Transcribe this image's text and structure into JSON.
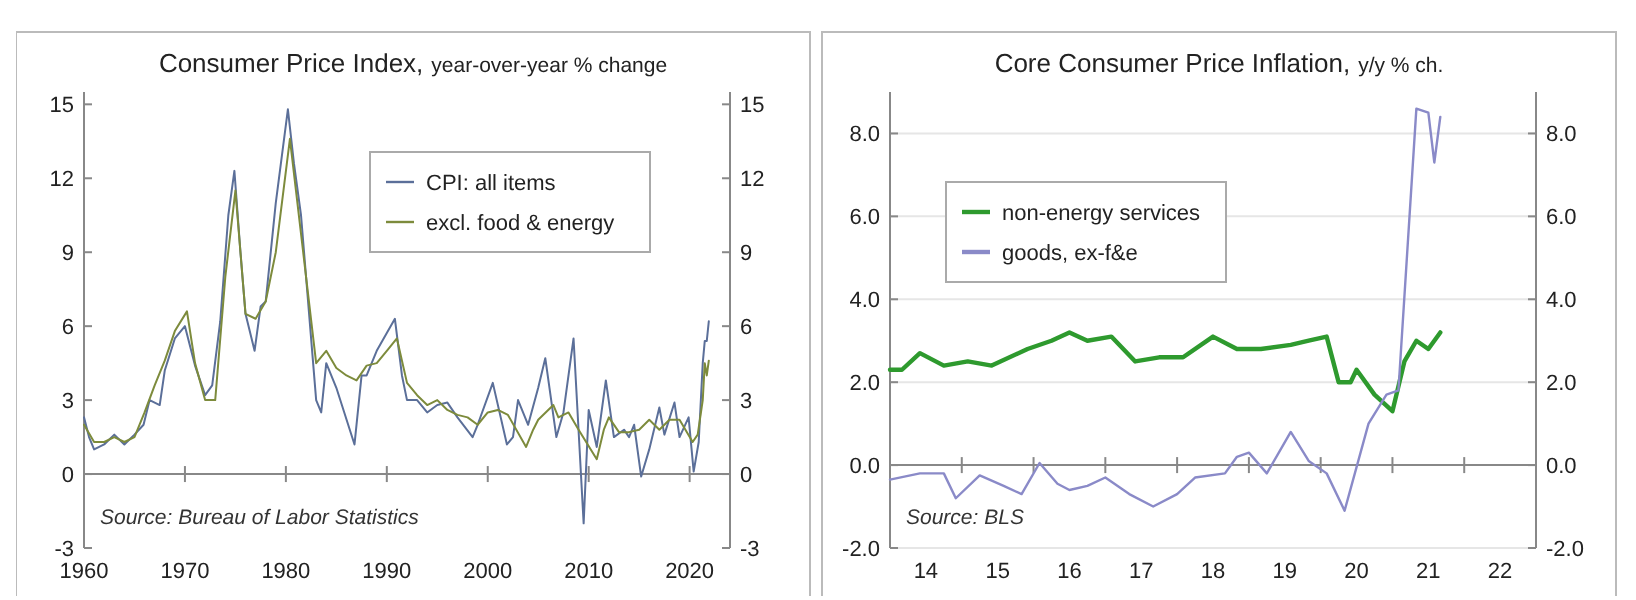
{
  "chart_data": [
    {
      "type": "line",
      "title": "Consumer Price Index,",
      "subtitle": "year-over-year % change",
      "xlim": [
        1960,
        2024
      ],
      "xticks": [
        1960,
        1970,
        1980,
        1990,
        2000,
        2010,
        2020
      ],
      "ylim": [
        -3,
        15.5
      ],
      "yticks": [
        -3,
        0,
        3,
        6,
        9,
        12,
        15
      ],
      "y2lim": [
        -3,
        15.5
      ],
      "y2ticks": [
        -3,
        0,
        3,
        6,
        9,
        12,
        15
      ],
      "legend": "top right",
      "annotations": [
        "Source: Bureau of Labor Statistics"
      ],
      "series": [
        {
          "name": "CPI: all items",
          "color": "#5b6f99",
          "x": [
            1960,
            1960.5,
            1961,
            1962,
            1963,
            1964,
            1965,
            1965.9,
            1966.5,
            1967.5,
            1968,
            1969,
            1970,
            1971,
            1972,
            1972.7,
            1973.5,
            1974.3,
            1974.9,
            1975.5,
            1976,
            1976.9,
            1977.5,
            1978,
            1979,
            1980.2,
            1980.8,
            1981.5,
            1982,
            1983,
            1983.5,
            1984,
            1985,
            1986.8,
            1987.5,
            1988,
            1989,
            1990.8,
            1991.5,
            1992,
            1993,
            1994,
            1995,
            1996,
            1997,
            1998.5,
            1999,
            2000.5,
            2001.9,
            2002.5,
            2003,
            2004,
            2005,
            2005.7,
            2006.8,
            2007.5,
            2008.5,
            2009.5,
            2010,
            2010.8,
            2011.7,
            2012.5,
            2013.5,
            2014,
            2014.5,
            2015.2,
            2016,
            2017,
            2017.5,
            2018.5,
            2019,
            2019.9,
            2020.4,
            2020.9,
            2021.3,
            2021.5,
            2021.7,
            2021.9
          ],
          "values": [
            2.3,
            1.5,
            1.0,
            1.2,
            1.6,
            1.2,
            1.6,
            2.0,
            3.0,
            2.8,
            4.2,
            5.5,
            6.0,
            4.4,
            3.2,
            3.6,
            6.2,
            10.5,
            12.3,
            9.0,
            6.5,
            5.0,
            6.8,
            7.0,
            11.0,
            14.8,
            12.6,
            10.5,
            8.0,
            3.0,
            2.5,
            4.5,
            3.5,
            1.2,
            4.0,
            4.0,
            5.0,
            6.3,
            4.0,
            3.0,
            3.0,
            2.5,
            2.8,
            2.9,
            2.3,
            1.5,
            2.0,
            3.7,
            1.2,
            1.5,
            3.0,
            2.0,
            3.5,
            4.7,
            1.5,
            2.5,
            5.5,
            -2.0,
            2.6,
            1.1,
            3.8,
            1.5,
            1.8,
            1.5,
            2.0,
            -0.1,
            1.0,
            2.7,
            1.6,
            2.9,
            1.5,
            2.3,
            0.1,
            1.3,
            4.5,
            5.4,
            5.4,
            6.2
          ]
        },
        {
          "name": "excl. food & energy",
          "color": "#7d8b3c",
          "x": [
            1960,
            1961,
            1962,
            1963,
            1964,
            1965,
            1966,
            1967,
            1968,
            1969,
            1970.2,
            1971,
            1972,
            1973,
            1974,
            1975,
            1976,
            1977,
            1978,
            1979,
            1980.4,
            1981,
            1982,
            1983,
            1984,
            1985,
            1986,
            1987,
            1988,
            1989,
            1990,
            1991,
            1992,
            1993,
            1994,
            1995,
            1996,
            1997,
            1998,
            1999,
            2000,
            2001,
            2002,
            2003.8,
            2004.5,
            2005,
            2006.5,
            2007,
            2008,
            2009,
            2010.8,
            2011.5,
            2012,
            2013,
            2014,
            2015,
            2016,
            2017,
            2018,
            2019,
            2020.3,
            2020.8,
            2021.3,
            2021.5,
            2021.7,
            2021.9
          ],
          "values": [
            2.0,
            1.3,
            1.3,
            1.5,
            1.3,
            1.5,
            2.5,
            3.6,
            4.6,
            5.8,
            6.6,
            4.5,
            3.0,
            3.0,
            8.0,
            11.5,
            6.5,
            6.3,
            7.0,
            9.0,
            13.6,
            11.5,
            8.0,
            4.5,
            5.0,
            4.3,
            4.0,
            3.8,
            4.4,
            4.5,
            5.0,
            5.5,
            3.7,
            3.2,
            2.8,
            3.0,
            2.6,
            2.4,
            2.3,
            2.0,
            2.5,
            2.6,
            2.4,
            1.1,
            1.8,
            2.2,
            2.8,
            2.3,
            2.5,
            1.8,
            0.6,
            1.8,
            2.3,
            1.7,
            1.7,
            1.8,
            2.2,
            1.8,
            2.2,
            2.2,
            1.3,
            1.6,
            3.0,
            4.5,
            4.0,
            4.6
          ]
        }
      ]
    },
    {
      "type": "line",
      "title": "Core Consumer Price Inflation,",
      "subtitle": "y/y % ch.",
      "xlim": [
        "2014-01",
        "2023-01"
      ],
      "xticks": [
        {
          "value": "2014-07",
          "label": "14"
        },
        {
          "value": "2015-07",
          "label": "15"
        },
        {
          "value": "2016-07",
          "label": "16"
        },
        {
          "value": "2017-07",
          "label": "17"
        },
        {
          "value": "2018-07",
          "label": "18"
        },
        {
          "value": "2019-07",
          "label": "19"
        },
        {
          "value": "2020-07",
          "label": "20"
        },
        {
          "value": "2021-07",
          "label": "21"
        },
        {
          "value": "2022-07",
          "label": "22"
        }
      ],
      "ylim": [
        -2,
        9
      ],
      "yticks": [
        {
          "value": -2,
          "label": "-2.0"
        },
        {
          "value": 0,
          "label": "0.0"
        },
        {
          "value": 2,
          "label": "2.0"
        },
        {
          "value": 4,
          "label": "4.0"
        },
        {
          "value": 6,
          "label": "6.0"
        },
        {
          "value": 8,
          "label": "8.0"
        }
      ],
      "y2lim": [
        -2,
        9
      ],
      "y2ticks": [
        {
          "value": -2,
          "label": "-2.0"
        },
        {
          "value": 0,
          "label": "0.0"
        },
        {
          "value": 2,
          "label": "2.0"
        },
        {
          "value": 4,
          "label": "4.0"
        },
        {
          "value": 6,
          "label": "6.0"
        },
        {
          "value": 8,
          "label": "8.0"
        }
      ],
      "legend": "top left",
      "grid": "y",
      "annotations": [
        "Source: BLS"
      ],
      "series": [
        {
          "name": "non-energy services",
          "color": "#2e9a2e",
          "x": [
            "2014-01",
            "2014-03",
            "2014-06",
            "2014-10",
            "2015-02",
            "2015-06",
            "2015-12",
            "2016-04",
            "2016-07",
            "2016-10",
            "2017-02",
            "2017-06",
            "2017-10",
            "2018-02",
            "2018-07",
            "2018-11",
            "2019-03",
            "2019-08",
            "2019-11",
            "2020-02",
            "2020-04",
            "2020-06",
            "2020-07",
            "2020-10",
            "2021-01",
            "2021-03",
            "2021-05",
            "2021-07",
            "2021-09"
          ],
          "values": [
            2.3,
            2.3,
            2.7,
            2.4,
            2.5,
            2.4,
            2.8,
            3.0,
            3.2,
            3.0,
            3.1,
            2.5,
            2.6,
            2.6,
            3.1,
            2.8,
            2.8,
            2.9,
            3.0,
            3.1,
            2.0,
            2.0,
            2.3,
            1.7,
            1.3,
            2.5,
            3.0,
            2.8,
            3.2
          ]
        },
        {
          "name": "goods, ex-f&e",
          "color": "#8a8ac8",
          "x": [
            "2014-01",
            "2014-06",
            "2014-10",
            "2014-12",
            "2015-04",
            "2015-08",
            "2015-11",
            "2016-02",
            "2016-05",
            "2016-07",
            "2016-10",
            "2017-01",
            "2017-05",
            "2017-09",
            "2018-01",
            "2018-04",
            "2018-09",
            "2018-11",
            "2019-01",
            "2019-04",
            "2019-08",
            "2019-11",
            "2020-02",
            "2020-05",
            "2020-09",
            "2020-12",
            "2021-02",
            "2021-05",
            "2021-07",
            "2021-08",
            "2021-09"
          ],
          "values": [
            -0.35,
            -0.2,
            -0.2,
            -0.8,
            -0.25,
            -0.5,
            -0.7,
            0.05,
            -0.45,
            -0.6,
            -0.5,
            -0.3,
            -0.7,
            -1.0,
            -0.7,
            -0.3,
            -0.2,
            0.2,
            0.3,
            -0.2,
            0.8,
            0.1,
            -0.2,
            -1.1,
            1.0,
            1.7,
            1.8,
            8.6,
            8.5,
            7.3,
            8.4
          ]
        }
      ]
    }
  ]
}
